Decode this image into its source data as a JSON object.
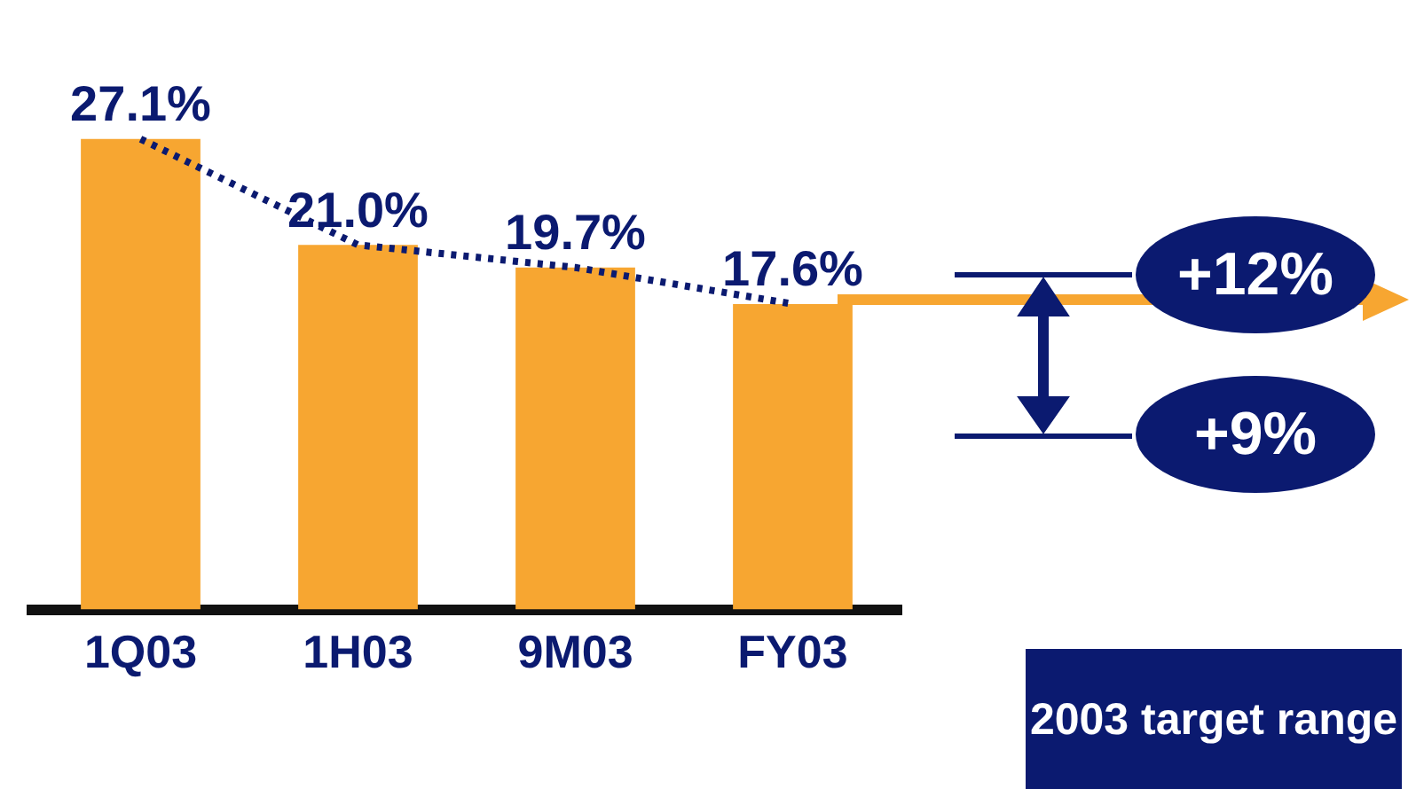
{
  "chart_data": {
    "type": "bar",
    "categories": [
      "1Q03",
      "1H03",
      "9M03",
      "FY03"
    ],
    "series": [
      {
        "color": "#f7a631",
        "values": [
          27.1,
          21.0,
          19.7,
          17.6
        ],
        "value_labels": [
          "27.1%",
          "21.0%",
          "19.7%",
          "17.6%"
        ]
      },
      {
        "type": "line",
        "color": "#0b1a70",
        "values": [
          27.1,
          21.0,
          19.7,
          17.6
        ],
        "line_style": "dotted"
      }
    ],
    "marker": "none",
    "tick_labels": "x",
    "grid": false,
    "legend": false,
    "annotations": [
      "+12%",
      "+9%",
      "2003 target range"
    ]
  }
}
